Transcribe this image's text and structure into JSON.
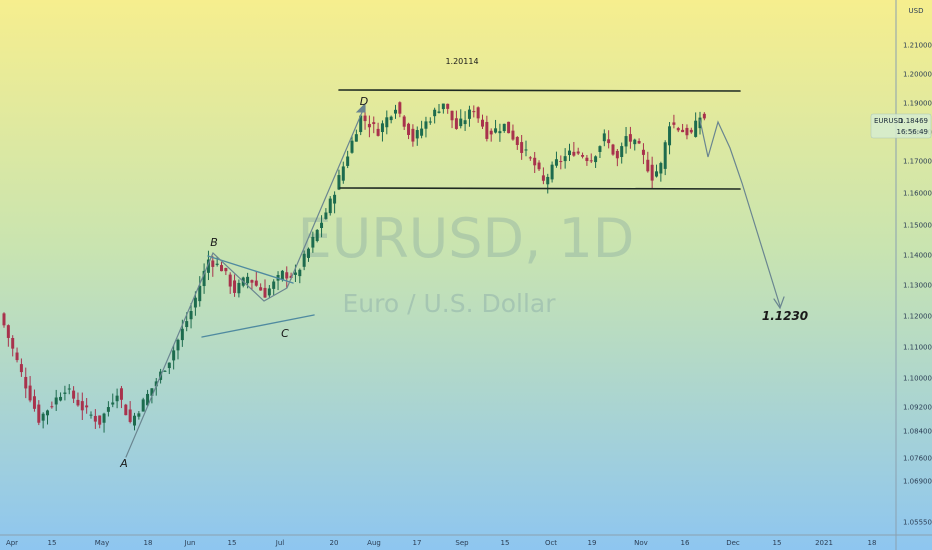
{
  "chart_data": {
    "type": "candlestick",
    "symbol": "EURUSD",
    "timeframe": "1D",
    "watermark_symbol": "EURUSD, 1D",
    "watermark_description": "Euro / U.S. Dollar",
    "currency": "USD",
    "ylim": [
      1.0545,
      1.2245
    ],
    "y_ticks": [
      "1.21000",
      "1.20000",
      "1.19000",
      "1.18000",
      "1.17000",
      "1.16000",
      "1.15000",
      "1.14000",
      "1.13000",
      "1.12000",
      "1.11000",
      "1.10000",
      "1.09200",
      "1.08400",
      "1.07600",
      "1.06900",
      "1.05550"
    ],
    "x_ticks": [
      "Apr",
      "15",
      "May",
      "18",
      "Jun",
      "15",
      "Jul",
      "20",
      "Aug",
      "17",
      "Sep",
      "15",
      "Oct",
      "19",
      "Nov",
      "16",
      "Dec",
      "15",
      "2021",
      "18"
    ],
    "last_price": {
      "symbol": "EURUSD",
      "price": "1.18469",
      "countdown": "16:56:49"
    },
    "peak_label": "1.20114",
    "wave_labels": [
      "A",
      "B",
      "C",
      "D"
    ],
    "target_label": "1.1230",
    "resistance": 1.1945,
    "support": 1.1615,
    "candle_colors": {
      "up": "#1d6b4e",
      "down": "#a8324c"
    },
    "candles": []
  }
}
